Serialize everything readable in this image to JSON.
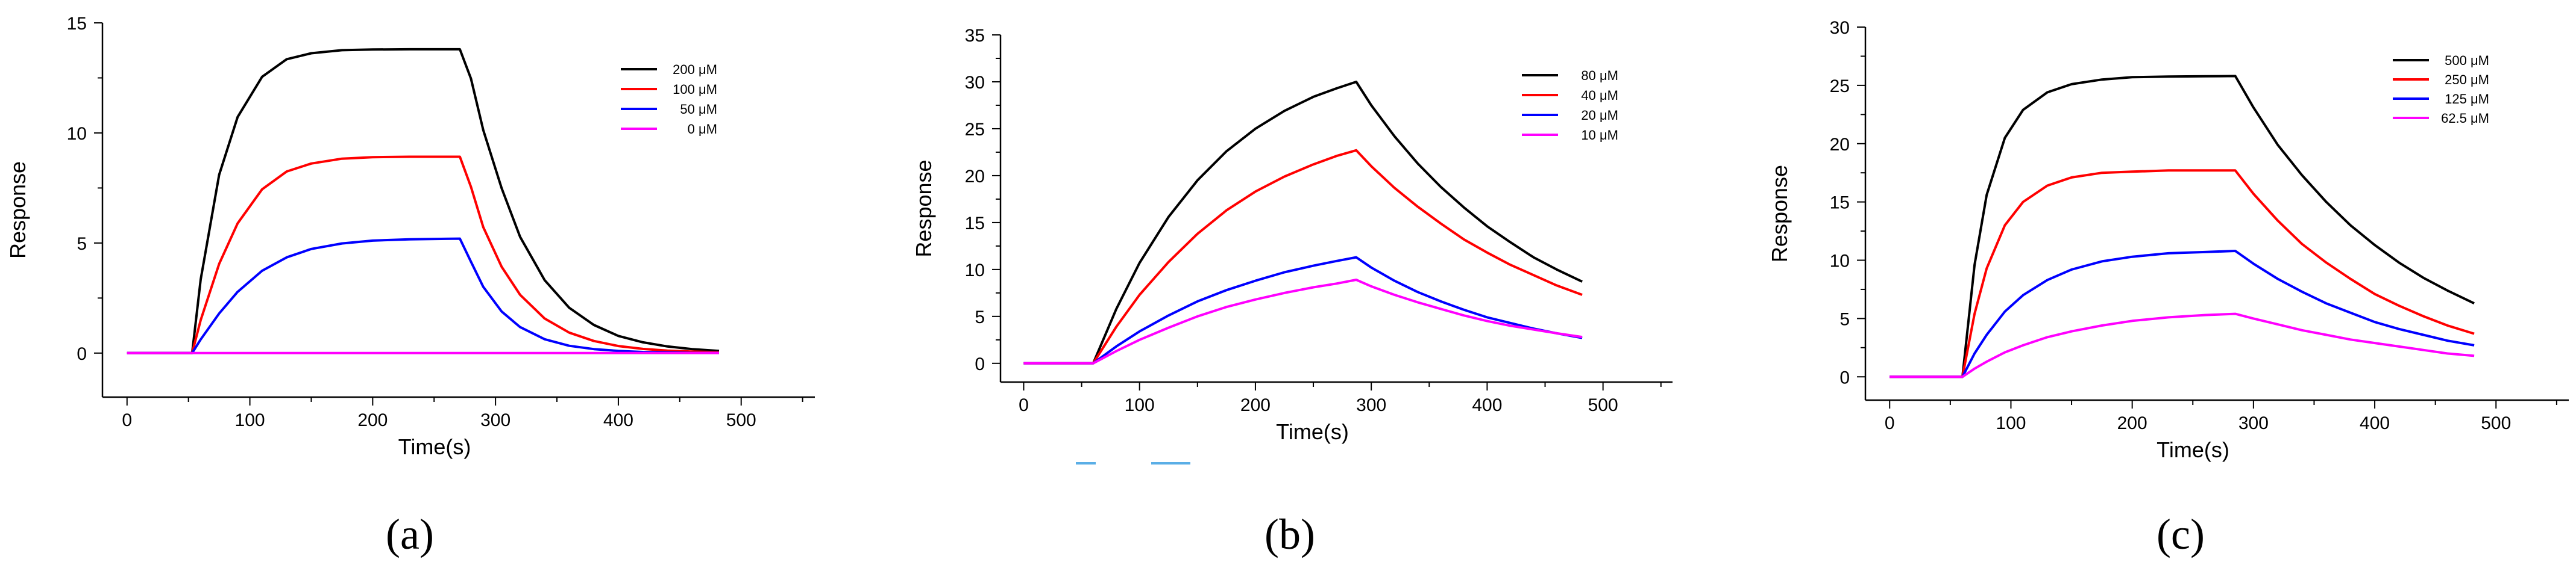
{
  "figure": {
    "panels": [
      "(a)",
      "(b)",
      "(c)"
    ]
  },
  "chart_data": [
    {
      "type": "line",
      "panel_label": "(a)",
      "xlabel": "Time(s)",
      "ylabel": "Response",
      "xlim": [
        -20,
        560
      ],
      "ylim": [
        -2,
        15
      ],
      "xticks": [
        0,
        100,
        200,
        300,
        400,
        500
      ],
      "yticks": [
        0,
        5,
        10,
        15
      ],
      "grid": false,
      "legend": "top-right",
      "series": [
        {
          "name": "200 μM",
          "color": "#000000",
          "x": [
            0,
            53,
            60,
            75,
            90,
            110,
            130,
            150,
            175,
            200,
            230,
            260,
            271,
            280,
            290,
            305,
            320,
            340,
            360,
            380,
            400,
            420,
            440,
            460,
            482
          ],
          "y": [
            0,
            0,
            3.35,
            8.1,
            10.72,
            12.55,
            13.35,
            13.62,
            13.76,
            13.79,
            13.8,
            13.8,
            13.8,
            12.47,
            10.13,
            7.49,
            5.28,
            3.31,
            2.06,
            1.28,
            0.78,
            0.49,
            0.3,
            0.18,
            0.1
          ]
        },
        {
          "name": "100 μM",
          "color": "#ff0000",
          "x": [
            0,
            53,
            60,
            75,
            90,
            110,
            130,
            150,
            175,
            200,
            230,
            260,
            271,
            280,
            290,
            305,
            320,
            340,
            360,
            380,
            400,
            420,
            440,
            460,
            482
          ],
          "y": [
            0,
            0,
            1.5,
            4.05,
            5.89,
            7.44,
            8.25,
            8.61,
            8.83,
            8.9,
            8.92,
            8.92,
            8.92,
            7.55,
            5.72,
            3.92,
            2.65,
            1.57,
            0.93,
            0.55,
            0.32,
            0.19,
            0.11,
            0.07,
            0.04
          ]
        },
        {
          "name": "50 μM",
          "color": "#0000ff",
          "x": [
            0,
            53,
            60,
            75,
            90,
            110,
            130,
            150,
            175,
            200,
            230,
            260,
            271,
            280,
            290,
            305,
            320,
            340,
            360,
            380,
            400,
            420,
            440,
            460,
            482
          ],
          "y": [
            0,
            0,
            0.62,
            1.8,
            2.78,
            3.74,
            4.35,
            4.73,
            4.98,
            5.11,
            5.17,
            5.19,
            5.2,
            4.15,
            3.01,
            1.89,
            1.18,
            0.63,
            0.33,
            0.18,
            0.1,
            0.05,
            0.03,
            0.01,
            0.01
          ]
        },
        {
          "name": "0 μM",
          "color": "#ff00ff",
          "x": [
            0,
            482
          ],
          "y": [
            0,
            0
          ]
        }
      ]
    },
    {
      "type": "line",
      "panel_label": "(b)",
      "xlabel": "Time(s)",
      "ylabel": "Response",
      "xlim": [
        -20,
        560
      ],
      "ylim": [
        -2,
        35
      ],
      "xticks": [
        0,
        100,
        200,
        300,
        400,
        500
      ],
      "yticks": [
        0,
        5,
        10,
        15,
        20,
        25,
        30,
        35
      ],
      "grid": false,
      "legend": "top-right",
      "series": [
        {
          "name": "80 μM",
          "color": "#000000",
          "x": [
            0,
            60,
            80,
            100,
            125,
            150,
            175,
            200,
            225,
            250,
            270,
            287,
            300,
            320,
            340,
            360,
            380,
            400,
            420,
            440,
            460,
            482
          ],
          "y": [
            0,
            0,
            5.8,
            10.7,
            15.6,
            19.5,
            22.6,
            25.0,
            26.9,
            28.4,
            29.3,
            30.0,
            27.5,
            24.2,
            21.3,
            18.8,
            16.6,
            14.6,
            12.9,
            11.3,
            10.0,
            8.7
          ]
        },
        {
          "name": "40 μM",
          "color": "#ff0000",
          "x": [
            0,
            60,
            80,
            100,
            125,
            150,
            175,
            200,
            225,
            250,
            270,
            287,
            300,
            320,
            340,
            360,
            380,
            400,
            420,
            440,
            460,
            482
          ],
          "y": [
            0,
            0,
            3.9,
            7.3,
            10.8,
            13.8,
            16.3,
            18.3,
            19.9,
            21.2,
            22.1,
            22.7,
            21.0,
            18.7,
            16.7,
            14.9,
            13.2,
            11.8,
            10.5,
            9.4,
            8.3,
            7.3
          ]
        },
        {
          "name": "20 μM",
          "color": "#0000ff",
          "x": [
            0,
            60,
            80,
            100,
            125,
            150,
            175,
            200,
            225,
            250,
            270,
            287,
            300,
            320,
            340,
            360,
            380,
            400,
            420,
            440,
            460,
            482
          ],
          "y": [
            0,
            0,
            1.8,
            3.4,
            5.1,
            6.6,
            7.8,
            8.8,
            9.7,
            10.4,
            10.9,
            11.3,
            10.2,
            8.8,
            7.6,
            6.6,
            5.7,
            4.9,
            4.3,
            3.7,
            3.2,
            2.7
          ]
        },
        {
          "name": "10 μM",
          "color": "#ff00ff",
          "x": [
            0,
            60,
            80,
            100,
            125,
            150,
            175,
            200,
            225,
            250,
            270,
            287,
            300,
            320,
            340,
            360,
            380,
            400,
            420,
            440,
            460,
            482
          ],
          "y": [
            0,
            0,
            1.3,
            2.5,
            3.8,
            5.0,
            6.0,
            6.8,
            7.5,
            8.1,
            8.5,
            8.9,
            8.2,
            7.3,
            6.5,
            5.8,
            5.1,
            4.5,
            4.0,
            3.6,
            3.2,
            2.8
          ]
        }
      ]
    },
    {
      "type": "line",
      "panel_label": "(c)",
      "xlabel": "Time(s)",
      "ylabel": "Response",
      "xlim": [
        -20,
        560
      ],
      "ylim": [
        -2,
        30
      ],
      "xticks": [
        0,
        100,
        200,
        300,
        400,
        500
      ],
      "yticks": [
        0,
        5,
        10,
        15,
        20,
        25,
        30
      ],
      "grid": false,
      "legend": "top-right",
      "series": [
        {
          "name": "500 μM",
          "color": "#000000",
          "x": [
            0,
            60,
            70,
            80,
            95,
            110,
            130,
            150,
            175,
            200,
            230,
            260,
            285,
            300,
            320,
            340,
            360,
            380,
            400,
            420,
            440,
            460,
            482
          ],
          "y": [
            0,
            0,
            9.6,
            15.6,
            20.5,
            22.9,
            24.4,
            25.1,
            25.5,
            25.7,
            25.75,
            25.78,
            25.8,
            23.1,
            19.9,
            17.3,
            15.0,
            13.0,
            11.3,
            9.8,
            8.5,
            7.4,
            6.3
          ]
        },
        {
          "name": "250 μM",
          "color": "#ff0000",
          "x": [
            0,
            60,
            70,
            80,
            95,
            110,
            130,
            150,
            175,
            200,
            230,
            260,
            285,
            300,
            320,
            340,
            360,
            380,
            400,
            420,
            440,
            460,
            482
          ],
          "y": [
            0,
            0,
            5.4,
            9.3,
            13.0,
            15.0,
            16.4,
            17.1,
            17.5,
            17.6,
            17.7,
            17.7,
            17.7,
            15.7,
            13.4,
            11.4,
            9.8,
            8.4,
            7.1,
            6.1,
            5.2,
            4.4,
            3.7
          ]
        },
        {
          "name": "125 μM",
          "color": "#0000ff",
          "x": [
            0,
            60,
            70,
            80,
            95,
            110,
            130,
            150,
            175,
            200,
            230,
            260,
            285,
            300,
            320,
            340,
            360,
            380,
            400,
            420,
            440,
            460,
            482
          ],
          "y": [
            0,
            0,
            2.0,
            3.6,
            5.6,
            7.0,
            8.3,
            9.2,
            9.9,
            10.3,
            10.6,
            10.7,
            10.8,
            9.7,
            8.4,
            7.3,
            6.3,
            5.5,
            4.7,
            4.1,
            3.6,
            3.1,
            2.7
          ]
        },
        {
          "name": "62.5 μM",
          "color": "#ff00ff",
          "x": [
            0,
            60,
            70,
            80,
            95,
            110,
            130,
            150,
            175,
            200,
            230,
            260,
            285,
            300,
            320,
            340,
            360,
            380,
            400,
            420,
            440,
            460,
            482
          ],
          "y": [
            0,
            0,
            0.7,
            1.3,
            2.1,
            2.7,
            3.4,
            3.9,
            4.4,
            4.8,
            5.1,
            5.3,
            5.4,
            5.0,
            4.5,
            4.0,
            3.6,
            3.2,
            2.9,
            2.6,
            2.3,
            2.0,
            1.8
          ]
        }
      ]
    }
  ]
}
